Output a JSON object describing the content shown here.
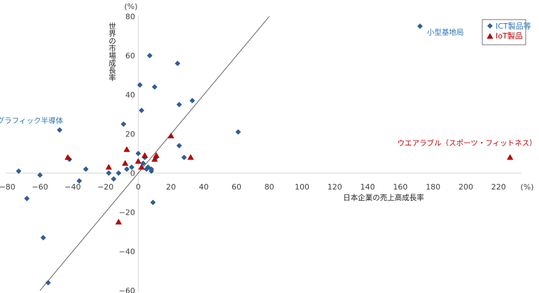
{
  "chart_data": {
    "type": "scatter",
    "xlabel": "日本企業の売上高成長率",
    "ylabel": "世界の市場成長率",
    "x_unit": "(%)",
    "y_unit": "(%)",
    "xlim": [
      -80,
      230
    ],
    "ylim": [
      -60,
      80
    ],
    "x_ticks": [
      -80,
      -60,
      -40,
      -20,
      0,
      20,
      40,
      60,
      80,
      100,
      120,
      140,
      160,
      180,
      200,
      220
    ],
    "x_tick_labels": [
      "−80",
      "−60",
      "−40",
      "−20",
      "0",
      "20",
      "40",
      "60",
      "80",
      "100",
      "120",
      "140",
      "160",
      "180",
      "200",
      "220"
    ],
    "y_ticks": [
      -60,
      -40,
      -20,
      0,
      20,
      40,
      60,
      80
    ],
    "y_tick_labels": [
      "−60",
      "−40",
      "−20",
      "0",
      "20",
      "40",
      "60",
      "80"
    ],
    "series": [
      {
        "name": "ICT製品等",
        "marker": "diamond",
        "color": "#2e5f9e",
        "points": [
          [
            -73,
            1
          ],
          [
            -68,
            -13
          ],
          [
            -60,
            -1
          ],
          [
            -58,
            -33
          ],
          [
            -55,
            -56
          ],
          [
            -48,
            22
          ],
          [
            -42,
            7
          ],
          [
            -36,
            -4
          ],
          [
            -32,
            2
          ],
          [
            -18,
            0
          ],
          [
            -15,
            -3
          ],
          [
            -12,
            0
          ],
          [
            -9,
            25
          ],
          [
            -7,
            2
          ],
          [
            -4,
            3
          ],
          [
            0,
            10
          ],
          [
            1,
            45
          ],
          [
            2,
            32
          ],
          [
            3,
            5
          ],
          [
            4,
            8
          ],
          [
            5,
            2
          ],
          [
            6,
            3
          ],
          [
            7,
            60
          ],
          [
            8,
            1
          ],
          [
            8,
            2
          ],
          [
            9,
            -15
          ],
          [
            10,
            44
          ],
          [
            11,
            8
          ],
          [
            24,
            56
          ],
          [
            25,
            35
          ],
          [
            25,
            14
          ],
          [
            28,
            8
          ],
          [
            33,
            37
          ],
          [
            61,
            21
          ],
          [
            172,
            75
          ]
        ]
      },
      {
        "name": "IoT製品",
        "marker": "triangle",
        "color": "#c00000",
        "points": [
          [
            -43,
            8
          ],
          [
            -18,
            3
          ],
          [
            -12,
            -25
          ],
          [
            -8,
            5
          ],
          [
            -7,
            12
          ],
          [
            0,
            6
          ],
          [
            2,
            3
          ],
          [
            4,
            9
          ],
          [
            10,
            7
          ],
          [
            11,
            9
          ],
          [
            20,
            19
          ],
          [
            32,
            8
          ],
          [
            227,
            8
          ]
        ]
      }
    ],
    "reference_line": {
      "type": "y=x",
      "from": -60,
      "to": 80
    },
    "annotations": [
      {
        "text": "小型基地局",
        "series": "ICT製品等",
        "x": 172,
        "y": 75
      },
      {
        "text": "グラフィック半導体",
        "series": "ICT製品等",
        "x": -48,
        "y": 22
      },
      {
        "text": "ウエアラブル（スポーツ・フィットネス）",
        "series": "IoT製品",
        "x": 227,
        "y": 8
      }
    ],
    "legend": {
      "position": "top-right",
      "items": [
        "ICT製品等",
        "IoT製品"
      ]
    },
    "grid": false
  }
}
